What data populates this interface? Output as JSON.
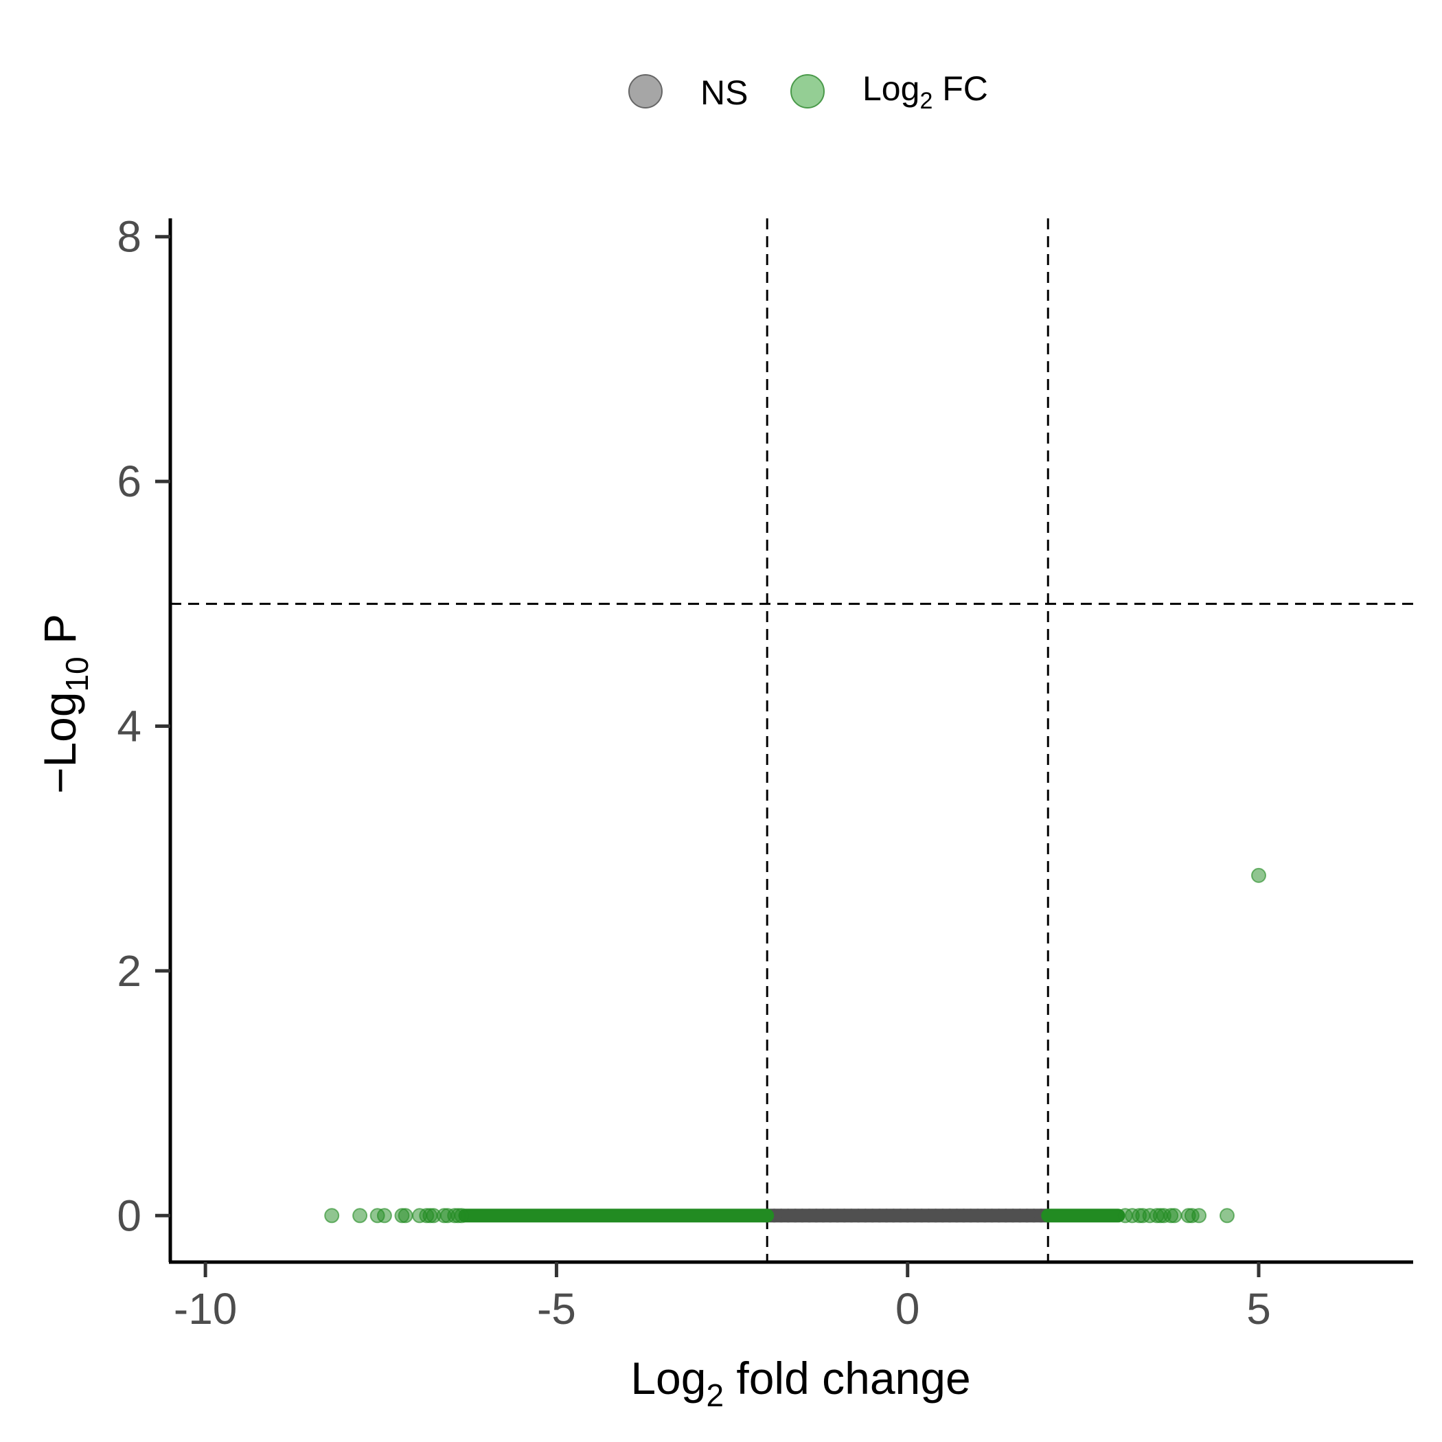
{
  "chart_data": {
    "type": "scatter",
    "title": "",
    "xlabel": {
      "base": "Log",
      "sub": "2",
      "rest": " fold change"
    },
    "ylabel": {
      "pre": "−Log",
      "sub": "10",
      "rest": " P"
    },
    "xlim": [
      -10.5,
      7.2
    ],
    "ylim": [
      -0.38,
      8.15
    ],
    "x_ticks": [
      -10,
      -5,
      0,
      5
    ],
    "x_tick_labels": [
      "-10",
      "-5",
      "0",
      "5"
    ],
    "y_ticks": [
      0,
      2,
      4,
      6,
      8
    ],
    "y_tick_labels": [
      "0",
      "2",
      "4",
      "6",
      "8"
    ],
    "thresholds": {
      "log2fc": [
        -2,
        2
      ],
      "neg_log10_p": 5
    },
    "legend": {
      "position": "top-center",
      "entries": [
        {
          "label": "NS",
          "color": "#808080"
        },
        {
          "label": "Log",
          "sub": "2",
          "rest": " FC",
          "color": "#5ab45a"
        }
      ]
    },
    "series": [
      {
        "name": "NS",
        "color": "#505050",
        "x_range": [
          -2,
          2
        ],
        "y": 0,
        "x": [
          -2.0,
          -1.9,
          -1.8,
          -1.7,
          -1.6,
          -1.5,
          -1.4,
          -1.3,
          -1.2,
          -1.1,
          -1.0,
          -0.9,
          -0.8,
          -0.7,
          -0.6,
          -0.5,
          -0.4,
          -0.3,
          -0.2,
          -0.1,
          0.0,
          0.1,
          0.2,
          0.3,
          0.4,
          0.5,
          0.6,
          0.7,
          0.8,
          0.9,
          1.0,
          1.1,
          1.2,
          1.3,
          1.4,
          1.5,
          1.6,
          1.7,
          1.8,
          1.9,
          2.0
        ]
      },
      {
        "name": "Log2 FC",
        "color": "#228b22",
        "dense_ranges": [
          [
            -6.3,
            -2.0
          ],
          [
            2.0,
            3.0
          ]
        ],
        "points": [
          [
            -8.2,
            0
          ],
          [
            -7.8,
            0
          ],
          [
            -7.55,
            0
          ],
          [
            -7.45,
            0
          ],
          [
            -7.2,
            0
          ],
          [
            -7.15,
            0
          ],
          [
            -6.95,
            0
          ],
          [
            -6.85,
            0
          ],
          [
            -6.8,
            0
          ],
          [
            -6.75,
            0
          ],
          [
            -6.6,
            0
          ],
          [
            -6.55,
            0
          ],
          [
            -6.45,
            0
          ],
          [
            -6.4,
            0
          ],
          [
            -6.35,
            0
          ],
          [
            3.1,
            0
          ],
          [
            3.2,
            0
          ],
          [
            3.3,
            0
          ],
          [
            3.35,
            0
          ],
          [
            3.45,
            0
          ],
          [
            3.55,
            0
          ],
          [
            3.6,
            0
          ],
          [
            3.65,
            0
          ],
          [
            3.75,
            0
          ],
          [
            3.8,
            0
          ],
          [
            4.0,
            0
          ],
          [
            4.05,
            0
          ],
          [
            4.15,
            0
          ],
          [
            4.55,
            0
          ],
          [
            5.0,
            2.78
          ]
        ]
      }
    ]
  }
}
